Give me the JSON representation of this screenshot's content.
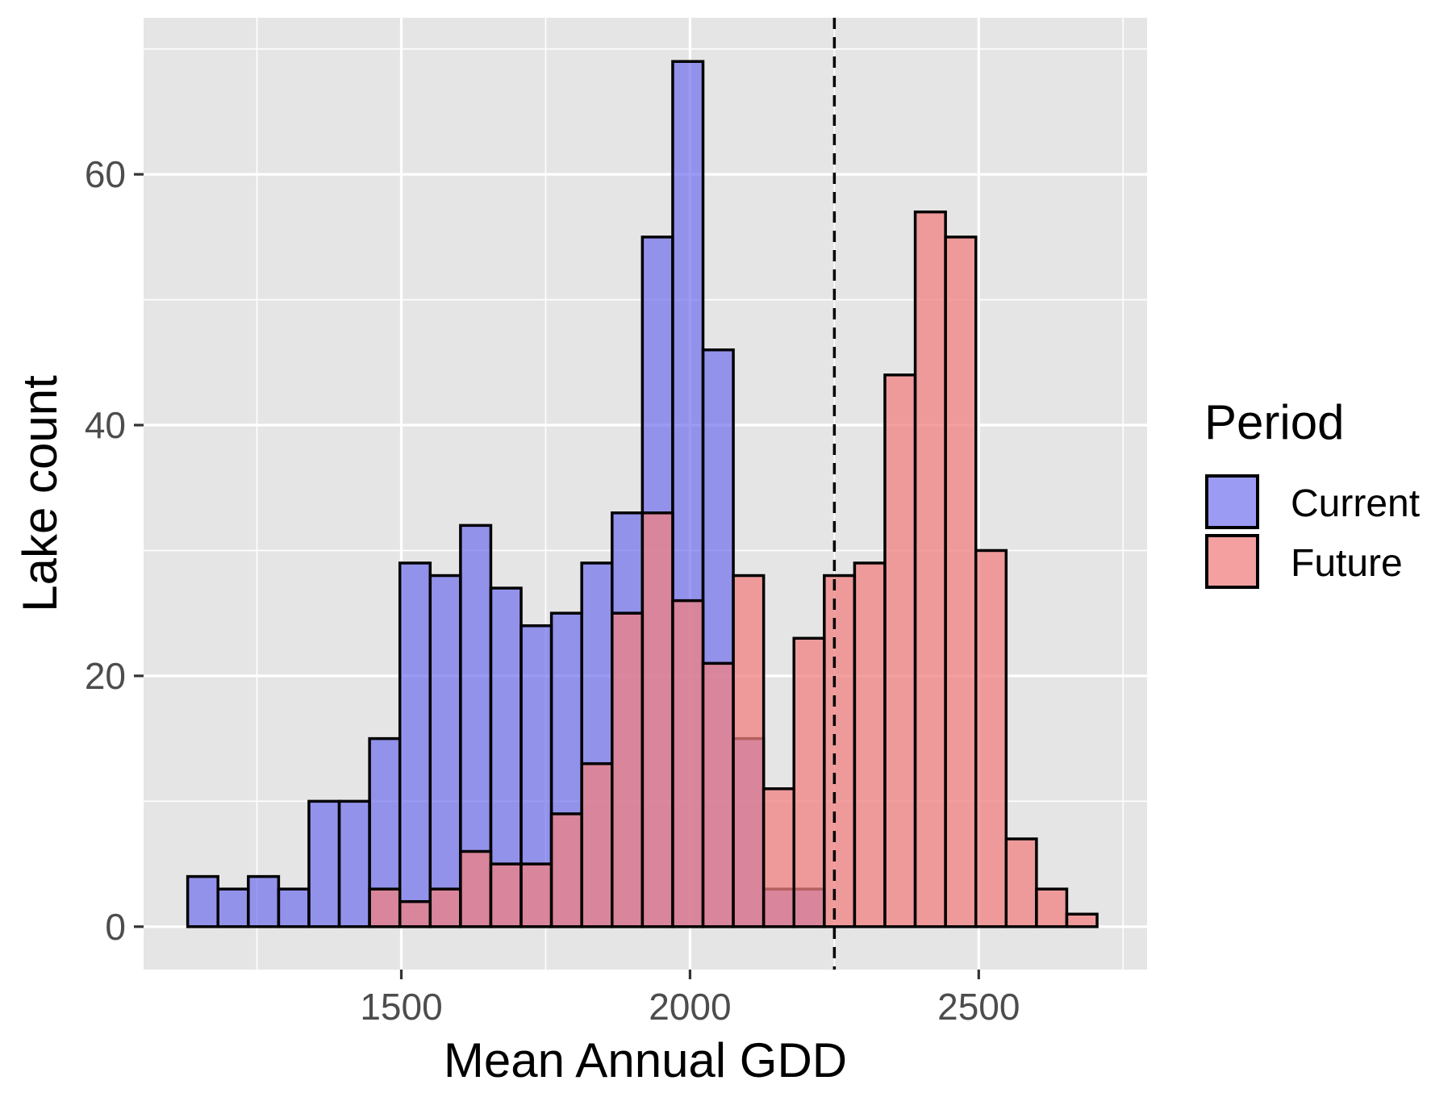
{
  "chart_data": {
    "type": "histogram",
    "title": "",
    "xlabel": "Mean Annual GDD",
    "ylabel": "Lake count",
    "xlim": [
      1100,
      2750
    ],
    "ylim": [
      -3.5,
      72
    ],
    "grid": true,
    "bin_width": 52.5,
    "bin_starts": [
      1130,
      1182.5,
      1235,
      1287.5,
      1340,
      1392.5,
      1445,
      1497.5,
      1550,
      1602.5,
      1655,
      1707.5,
      1760,
      1812.5,
      1865,
      1917.5,
      1970,
      2022.5,
      2075,
      2127.5,
      2180,
      2232.5,
      2285,
      2337.5,
      2390,
      2442.5,
      2495,
      2547.5,
      2600,
      2652.5
    ],
    "x_ticks": [
      1500,
      2000,
      2500
    ],
    "x_tick_labels": [
      "1500",
      "2000",
      "2500"
    ],
    "y_ticks": [
      0,
      20,
      40,
      60
    ],
    "y_tick_labels": [
      "0",
      "20",
      "40",
      "60"
    ],
    "reference_line": {
      "x": 2250,
      "style": "dashed",
      "color": "#000000"
    },
    "legend": {
      "title": "Period",
      "position": "right"
    },
    "series": [
      {
        "name": "Current",
        "color": "#6666ee",
        "opacity": 0.65,
        "values": [
          4,
          3,
          4,
          3,
          10,
          10,
          15,
          29,
          28,
          32,
          27,
          24,
          25,
          29,
          33,
          55,
          69,
          46,
          15,
          3,
          3,
          0,
          0,
          0,
          0,
          0,
          0,
          0,
          0,
          0
        ]
      },
      {
        "name": "Future",
        "color": "#f08080",
        "opacity": 0.75,
        "values": [
          0,
          0,
          0,
          0,
          0,
          0,
          3,
          2,
          3,
          6,
          5,
          5,
          9,
          13,
          25,
          33,
          26,
          21,
          28,
          11,
          23,
          28,
          29,
          44,
          57,
          55,
          30,
          7,
          3,
          1
        ]
      }
    ]
  }
}
